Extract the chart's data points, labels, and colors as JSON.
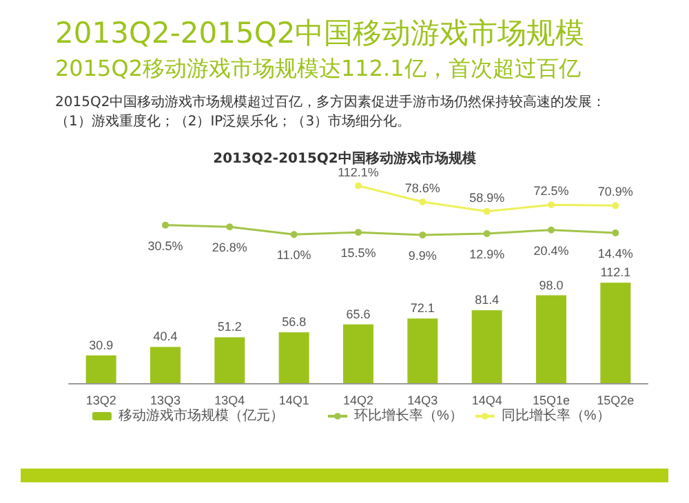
{
  "chart_data": [
    {
      "type": "line",
      "title": "2013Q2-2015Q2中国移动游戏市场规模",
      "subtitle": "2015Q2移动游戏市场规模达112.1亿，首次超过百亿",
      "annotations": [
        "2015Q2中国移动游戏市场规模超过百亿，多方因素促进手游市场仍然保持较高速的发展：（1）游戏重度化；（2）IP泛娱乐化；（3）市场细分化。",
        "2013Q2-2015Q2中国移动游戏市场规模"
      ],
      "categories": [
        null,
        null,
        null,
        null,
        null,
        null,
        null,
        null,
        null
      ],
      "tick_labels": false,
      "series": [
        {
          "name": "环比增长率（%）",
          "color": "#a3c449",
          "values": [
            null,
            30.5,
            26.8,
            11.0,
            15.5,
            9.9,
            12.9,
            20.4,
            14.4
          ],
          "value_labels": [
            null,
            "30.5%",
            "26.8%",
            "11.0%",
            "15.5%",
            "9.9%",
            "12.9%",
            "20.4%",
            "14.4%"
          ]
        },
        {
          "name": "同比增长率（%）",
          "color": "#eef05a",
          "values": [
            null,
            null,
            null,
            null,
            112.1,
            78.6,
            58.9,
            72.5,
            70.9
          ],
          "value_labels": [
            null,
            null,
            null,
            null,
            "112.1%",
            "78.6%",
            "58.9%",
            "72.5%",
            "70.9%"
          ]
        }
      ],
      "legend": "bottom",
      "marker": "circle"
    },
    {
      "type": "bar",
      "categories": [
        "13Q2",
        "13Q3",
        "13Q4",
        "14Q1",
        "14Q2",
        "14Q3",
        "14Q4",
        "15Q1e",
        "15Q2e"
      ],
      "series": [
        {
          "name": "移动游戏市场规模（亿元）",
          "color": "#9cc31c",
          "values": [
            30.9,
            40.4,
            51.2,
            56.8,
            65.6,
            72.1,
            81.4,
            98.0,
            112.1
          ],
          "value_labels": [
            "30.9",
            "40.4",
            "51.2",
            "56.8",
            "65.6",
            "72.1",
            "81.4",
            "98.0",
            "112.1"
          ]
        }
      ],
      "legend": "bottom"
    }
  ]
}
